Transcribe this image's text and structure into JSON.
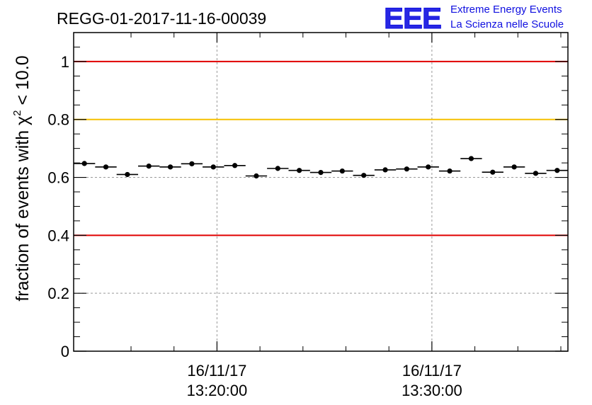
{
  "chart_data": {
    "type": "scatter",
    "title": "REGG-01-2017-11-16-00039",
    "ylabel": "fraction of events with χ² < 10.0",
    "ylabel_parts": {
      "pre": "fraction of events with ",
      "chi": "χ",
      "sup": "2",
      "post": " < 10.0"
    },
    "xlabel": "",
    "ylim": [
      0,
      1.1
    ],
    "xlim_minutes": [
      13.33,
      36.33
    ],
    "x_unit": "minutes after 16/11/17 13:00:00",
    "yticks": [
      {
        "value": 0,
        "label": "0"
      },
      {
        "value": 0.2,
        "label": "0.2"
      },
      {
        "value": 0.4,
        "label": "0.4"
      },
      {
        "value": 0.6,
        "label": "0.6"
      },
      {
        "value": 0.8,
        "label": "0.8"
      },
      {
        "value": 1,
        "label": "1"
      }
    ],
    "xticks": [
      {
        "minutes": 20,
        "date": "16/11/17",
        "time": "13:20:00"
      },
      {
        "minutes": 30,
        "date": "16/11/17",
        "time": "13:30:00"
      }
    ],
    "grid": true,
    "reference_lines": [
      {
        "y": 1.0,
        "color": "#e00000"
      },
      {
        "y": 0.8,
        "color": "#f5c000"
      },
      {
        "y": 0.4,
        "color": "#e00000"
      }
    ],
    "series": [
      {
        "x_minutes": [
          13.83,
          14.83,
          15.83,
          16.83,
          17.83,
          18.83,
          19.83,
          20.83,
          21.83,
          22.83,
          23.83,
          24.83,
          25.83,
          26.83,
          27.83,
          28.83,
          29.83,
          30.83,
          31.83,
          32.83,
          33.83,
          34.83,
          35.83
        ],
        "values": [
          0.648,
          0.636,
          0.61,
          0.639,
          0.636,
          0.647,
          0.636,
          0.641,
          0.605,
          0.631,
          0.624,
          0.617,
          0.622,
          0.607,
          0.626,
          0.629,
          0.636,
          0.622,
          0.665,
          0.618,
          0.636,
          0.614,
          0.624
        ],
        "x_half_width_minutes": 0.5,
        "y_error": 0.008,
        "color": "#000000"
      }
    ]
  },
  "logo": {
    "letters": "EEE",
    "line1": "Extreme Energy Events",
    "line2": "La Scienza nelle Scuole",
    "color": "#1010e0"
  }
}
